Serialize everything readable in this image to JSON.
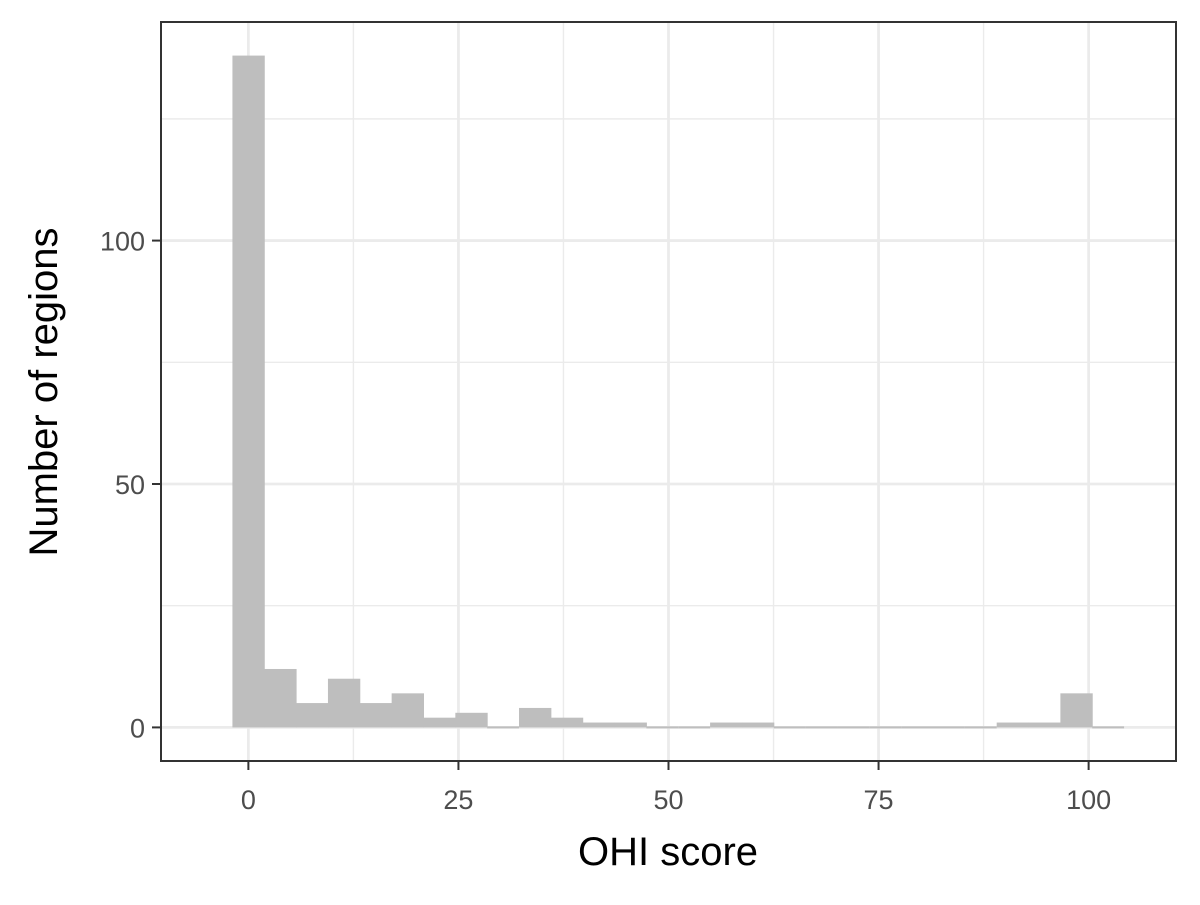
{
  "chart_data": {
    "type": "bar",
    "title": "",
    "xlabel": "OHI score",
    "ylabel": "Number of regions",
    "xlim": [
      -10.4,
      110.4
    ],
    "ylim": [
      -6.9,
      144.9
    ],
    "x_ticks": [
      0,
      25,
      50,
      75,
      100
    ],
    "x_tick_labels": [
      "0",
      "25",
      "50",
      "75",
      "100"
    ],
    "y_ticks": [
      0,
      50,
      100
    ],
    "y_tick_labels": [
      "0",
      "50",
      "100"
    ],
    "y_minor_ticks": [
      25,
      75,
      125
    ],
    "x_minor_ticks": [
      12.5,
      37.5,
      62.5,
      87.5
    ],
    "grid": true,
    "bin_width": 3.79,
    "bin_start": -1.9,
    "counts": [
      138,
      12,
      5,
      10,
      5,
      7,
      2,
      3,
      0,
      4,
      2,
      1,
      1,
      0,
      0,
      1,
      1,
      0,
      0,
      0,
      0,
      0,
      0,
      0,
      1,
      1,
      7,
      0
    ],
    "colors": {
      "bar": "#bebebe",
      "grid": "#ebebeb",
      "panel_border": "#333333",
      "tick": "#333333",
      "tick_label": "#4d4d4d",
      "axis_title": "#000000"
    }
  }
}
